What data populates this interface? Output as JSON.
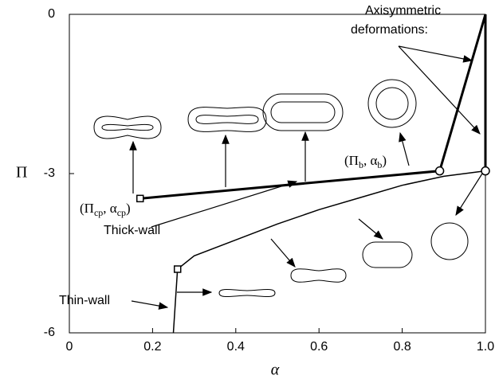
{
  "chart_data": {
    "type": "line",
    "xlabel": "α",
    "ylabel": "Π",
    "xlim": [
      0,
      1
    ],
    "ylim": [
      -6,
      0
    ],
    "xticks": [
      0,
      0.2,
      0.4,
      0.6,
      0.8,
      {
        "value": 1,
        "label": "1.0"
      }
    ],
    "yticks": [
      0,
      -3,
      -6
    ],
    "series": [
      {
        "name": "Thick-wall",
        "color": "#000000",
        "width": 3,
        "x": [
          0.17,
          0.89,
          1.0
        ],
        "values": [
          -3.47,
          -2.95,
          0
        ]
      },
      {
        "name": "Axisymmetric deformations:",
        "color": "#000000",
        "width": 3,
        "x": [
          1.0,
          1.0
        ],
        "values": [
          0,
          -2.95
        ]
      },
      {
        "name": "Thin-wall",
        "color": "#000000",
        "width": 1.5,
        "x": [
          0.25,
          0.26,
          0.3,
          0.4,
          0.5,
          0.6,
          0.7,
          0.8,
          0.9,
          1.0
        ],
        "values": [
          -6,
          -4.8,
          -4.55,
          -4.25,
          -3.95,
          -3.68,
          -3.45,
          -3.22,
          -3.05,
          -2.95
        ]
      }
    ],
    "markers": [
      {
        "shape": "square",
        "x": 0.17,
        "y": -3.47
      },
      {
        "shape": "circle",
        "x": 0.89,
        "y": -2.95
      },
      {
        "shape": "circle",
        "x": 1.0,
        "y": -2.95
      },
      {
        "shape": "square",
        "x": 0.26,
        "y": -4.8
      }
    ],
    "annotations": [
      {
        "parts": [
          "(Π",
          "cp",
          ", α",
          "cp",
          ")"
        ]
      },
      {
        "parts": [
          "(Π",
          "b",
          ", α",
          "b",
          ")"
        ]
      }
    ]
  }
}
